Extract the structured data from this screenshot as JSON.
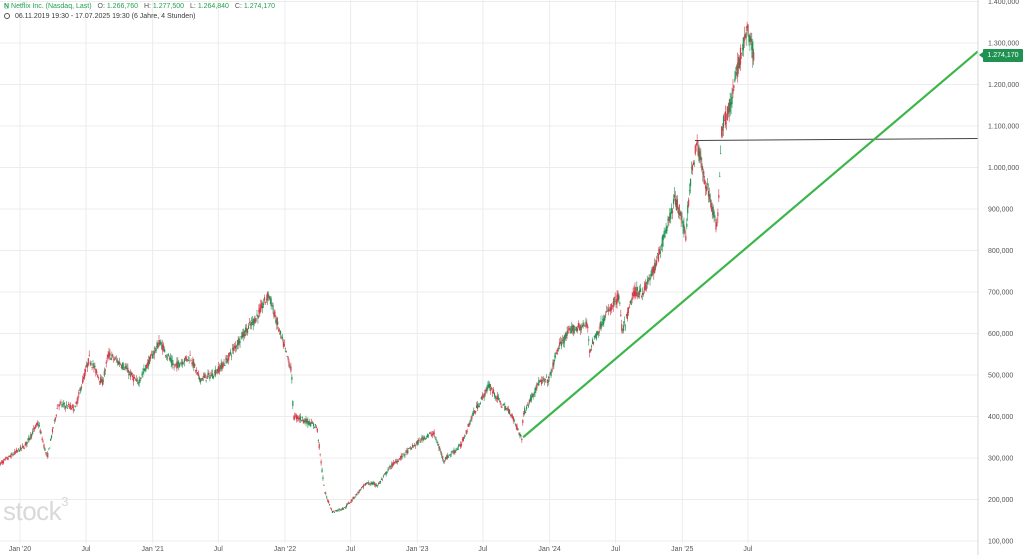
{
  "header": {
    "ticker": "N̲",
    "instrument": "Netflix Inc. (Nasdaq, Last)",
    "open_label": "O:",
    "open": "1.266,760",
    "high_label": "H:",
    "high": "1.277,500",
    "low_label": "L:",
    "low": "1.264,840",
    "close_label": "C:",
    "close": "1.274,170",
    "range": "06.11.2019 19:30 - 17.07.2025 19:30",
    "interval": "(6 Jahre, 4 Stunden)"
  },
  "watermark": {
    "text": "stock",
    "sup": "3"
  },
  "price_badge": "1.274,170",
  "colors": {
    "up": "#1f9150",
    "down": "#d23b4a",
    "trendline": "#3cb64a",
    "hline": "#444444",
    "grid": "#ececec"
  },
  "chart_data": {
    "type": "candlestick",
    "x_start": "2019-11-06",
    "x_end": "2025-07-17",
    "ylim": [
      100,
      1400
    ],
    "y_ticks": [
      {
        "v": 100,
        "label": "100,000"
      },
      {
        "v": 200,
        "label": "200,000"
      },
      {
        "v": 300,
        "label": "300,000"
      },
      {
        "v": 400,
        "label": "400,000"
      },
      {
        "v": 500,
        "label": "500,000"
      },
      {
        "v": 600,
        "label": "600,000"
      },
      {
        "v": 700,
        "label": "700,000"
      },
      {
        "v": 800,
        "label": "800,000"
      },
      {
        "v": 900,
        "label": "900,000"
      },
      {
        "v": 1000,
        "label": "1.000,000"
      },
      {
        "v": 1100,
        "label": "1.100,000"
      },
      {
        "v": 1200,
        "label": "1.200,000"
      },
      {
        "v": 1300,
        "label": "1.300,000"
      },
      {
        "v": 1400,
        "label": "1.400,000"
      }
    ],
    "x_ticks": [
      {
        "date": "2020-01-01",
        "label": "Jan '20"
      },
      {
        "date": "2020-07-01",
        "label": "Jul"
      },
      {
        "date": "2021-01-01",
        "label": "Jan '21"
      },
      {
        "date": "2021-07-01",
        "label": "Jul"
      },
      {
        "date": "2022-01-01",
        "label": "Jan '22"
      },
      {
        "date": "2022-07-01",
        "label": "Jul"
      },
      {
        "date": "2023-01-01",
        "label": "Jan '23"
      },
      {
        "date": "2023-07-01",
        "label": "Jul"
      },
      {
        "date": "2024-01-01",
        "label": "Jan '24"
      },
      {
        "date": "2024-07-01",
        "label": "Jul"
      },
      {
        "date": "2025-01-01",
        "label": "Jan '25"
      },
      {
        "date": "2025-07-01",
        "label": "Jul"
      }
    ],
    "price_path": [
      [
        "2019-11-06",
        285
      ],
      [
        "2020-01-15",
        330
      ],
      [
        "2020-02-20",
        385
      ],
      [
        "2020-03-16",
        300
      ],
      [
        "2020-04-15",
        430
      ],
      [
        "2020-06-01",
        420
      ],
      [
        "2020-07-10",
        540
      ],
      [
        "2020-08-15",
        480
      ],
      [
        "2020-09-01",
        550
      ],
      [
        "2020-10-15",
        520
      ],
      [
        "2020-11-20",
        480
      ],
      [
        "2021-01-20",
        580
      ],
      [
        "2021-03-01",
        520
      ],
      [
        "2021-04-15",
        545
      ],
      [
        "2021-05-10",
        490
      ],
      [
        "2021-06-15",
        500
      ],
      [
        "2021-07-20",
        530
      ],
      [
        "2021-09-01",
        590
      ],
      [
        "2021-10-15",
        640
      ],
      [
        "2021-11-17",
        695
      ],
      [
        "2021-12-15",
        610
      ],
      [
        "2022-01-19",
        510
      ],
      [
        "2022-01-24",
        400
      ],
      [
        "2022-02-15",
        395
      ],
      [
        "2022-03-30",
        375
      ],
      [
        "2022-04-20",
        220
      ],
      [
        "2022-05-12",
        170
      ],
      [
        "2022-06-15",
        180
      ],
      [
        "2022-07-20",
        215
      ],
      [
        "2022-08-15",
        240
      ],
      [
        "2022-09-15",
        235
      ],
      [
        "2022-10-20",
        280
      ],
      [
        "2022-12-10",
        320
      ],
      [
        "2023-01-20",
        350
      ],
      [
        "2023-02-15",
        360
      ],
      [
        "2023-03-15",
        295
      ],
      [
        "2023-05-01",
        330
      ],
      [
        "2023-06-01",
        400
      ],
      [
        "2023-07-18",
        475
      ],
      [
        "2023-08-20",
        430
      ],
      [
        "2023-09-15",
        410
      ],
      [
        "2023-10-17",
        345
      ],
      [
        "2023-10-20",
        405
      ],
      [
        "2023-12-01",
        480
      ],
      [
        "2023-12-31",
        490
      ],
      [
        "2024-01-24",
        565
      ],
      [
        "2024-03-01",
        610
      ],
      [
        "2024-04-15",
        620
      ],
      [
        "2024-04-20",
        560
      ],
      [
        "2024-06-01",
        640
      ],
      [
        "2024-07-10",
        690
      ],
      [
        "2024-07-20",
        600
      ],
      [
        "2024-08-20",
        700
      ],
      [
        "2024-09-15",
        700
      ],
      [
        "2024-10-18",
        760
      ],
      [
        "2024-12-10",
        920
      ],
      [
        "2024-12-25",
        900
      ],
      [
        "2025-01-10",
        830
      ],
      [
        "2025-01-22",
        960
      ],
      [
        "2025-02-10",
        1060
      ],
      [
        "2025-03-01",
        980
      ],
      [
        "2025-03-15",
        940
      ],
      [
        "2025-04-07",
        850
      ],
      [
        "2025-04-20",
        1100
      ],
      [
        "2025-05-15",
        1150
      ],
      [
        "2025-06-05",
        1250
      ],
      [
        "2025-06-30",
        1330
      ],
      [
        "2025-07-17",
        1274
      ]
    ],
    "annotations": {
      "horizontal_line": {
        "start": "2025-02-05",
        "end": "2025-12-31",
        "y1": 1065,
        "y2": 1070
      },
      "trendline": {
        "start": "2023-10-20",
        "end": "2025-12-31",
        "y1": 350,
        "y2": 1280
      }
    },
    "last_price": 1274.17
  }
}
